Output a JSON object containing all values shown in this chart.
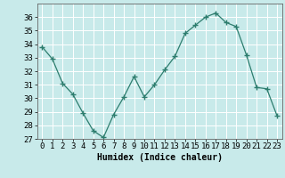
{
  "x": [
    0,
    1,
    2,
    3,
    4,
    5,
    6,
    7,
    8,
    9,
    10,
    11,
    12,
    13,
    14,
    15,
    16,
    17,
    18,
    19,
    20,
    21,
    22,
    23
  ],
  "y": [
    33.8,
    32.9,
    31.1,
    30.3,
    28.9,
    27.6,
    27.1,
    28.8,
    30.1,
    31.6,
    30.1,
    31.0,
    32.1,
    33.1,
    34.8,
    35.4,
    36.0,
    36.3,
    35.6,
    35.3,
    33.2,
    30.8,
    30.7,
    28.7
  ],
  "line_color": "#2d7d6e",
  "marker": "+",
  "background_color": "#c8eaea",
  "grid_color": "#ffffff",
  "xlabel": "Humidex (Indice chaleur)",
  "ylim": [
    27,
    37
  ],
  "xlim": [
    -0.5,
    23.5
  ],
  "yticks": [
    27,
    28,
    29,
    30,
    31,
    32,
    33,
    34,
    35,
    36
  ],
  "xticks": [
    0,
    1,
    2,
    3,
    4,
    5,
    6,
    7,
    8,
    9,
    10,
    11,
    12,
    13,
    14,
    15,
    16,
    17,
    18,
    19,
    20,
    21,
    22,
    23
  ],
  "xlabel_fontsize": 7,
  "tick_fontsize": 6.5
}
